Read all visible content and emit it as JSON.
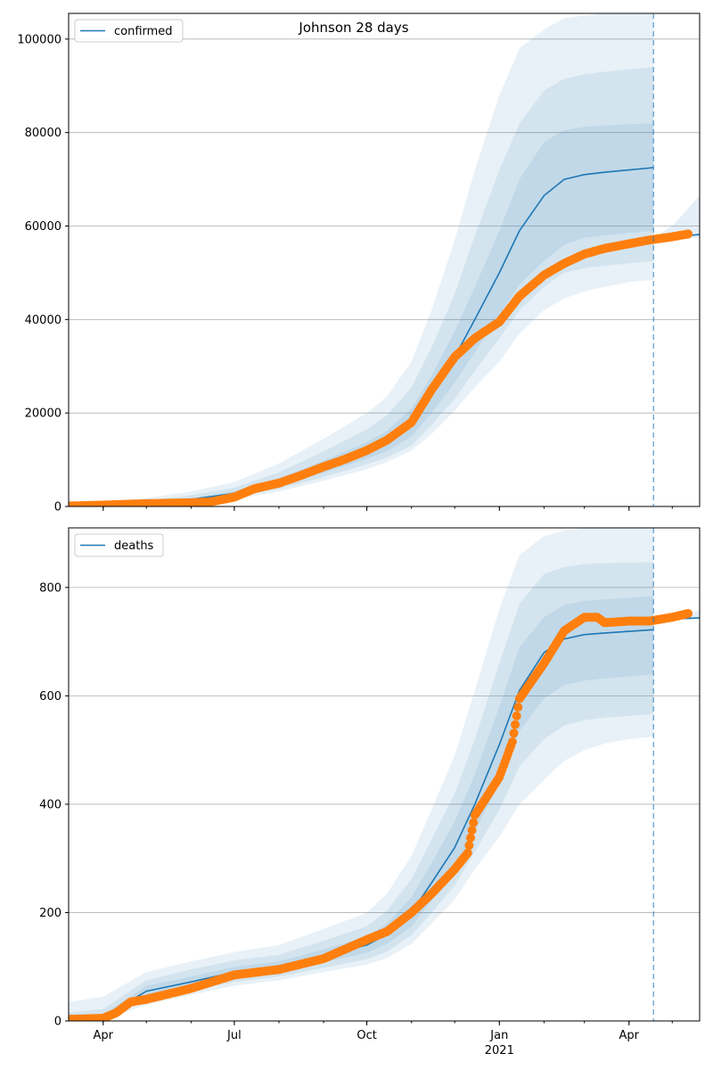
{
  "figure": {
    "title": "Johnson 28 days"
  },
  "colors": {
    "model_line": "#1f77b4",
    "band": "#1f77b4",
    "observed": "#ff7f0e",
    "grid": "#b0b0b0",
    "axis": "#000000"
  },
  "x_axis": {
    "range": [
      "2020-03-08",
      "2021-05-20"
    ],
    "tick_labels": [
      {
        "date": "2020-04-01",
        "label": "Apr"
      },
      {
        "date": "2020-07-01",
        "label": "Jul"
      },
      {
        "date": "2020-10-01",
        "label": "Oct"
      },
      {
        "date": "2021-01-01",
        "label": "Jan"
      },
      {
        "date": "2021-04-01",
        "label": "Apr"
      }
    ],
    "year_label": {
      "date": "2021-01-01",
      "label": "2021"
    },
    "forecast_start": "2021-04-18"
  },
  "chart_data": [
    {
      "type": "line",
      "legend": "confirmed",
      "legend_position": "top-left",
      "ylim": [
        0,
        105500
      ],
      "yticks": [
        0,
        20000,
        40000,
        60000,
        80000,
        100000
      ],
      "ytick_labels": [
        "0",
        "20000",
        "40000",
        "60000",
        "80000",
        "100000"
      ],
      "grid": "horizontal",
      "fit": {
        "dates": [
          "2020-03-08",
          "2020-04-01",
          "2020-05-01",
          "2020-06-01",
          "2020-07-01",
          "2020-08-01",
          "2020-09-01",
          "2020-10-01",
          "2020-10-15",
          "2020-11-01",
          "2020-11-15",
          "2020-12-01",
          "2020-12-15",
          "2021-01-01",
          "2021-01-15",
          "2021-02-01",
          "2021-02-15",
          "2021-03-01",
          "2021-03-15",
          "2021-04-01",
          "2021-04-18"
        ],
        "median": [
          200,
          400,
          800,
          1500,
          2800,
          5200,
          8500,
          12000,
          14000,
          18000,
          24000,
          32000,
          40000,
          50000,
          59000,
          66500,
          70000,
          71000,
          71500,
          72000,
          72500
        ],
        "band_50": [
          [
            150,
            250
          ],
          [
            300,
            500
          ],
          [
            650,
            950
          ],
          [
            1200,
            1800
          ],
          [
            2300,
            3300
          ],
          [
            4400,
            6000
          ],
          [
            7200,
            9800
          ],
          [
            10200,
            13800
          ],
          [
            11800,
            16200
          ],
          [
            15000,
            21000
          ],
          [
            20000,
            28000
          ],
          [
            26500,
            37500
          ],
          [
            33000,
            47000
          ],
          [
            41000,
            59000
          ],
          [
            47500,
            70000
          ],
          [
            52500,
            78000
          ],
          [
            56000,
            80500
          ],
          [
            57500,
            81200
          ],
          [
            58000,
            81500
          ],
          [
            58500,
            81800
          ],
          [
            59000,
            82000
          ]
        ],
        "band_80": [
          [
            100,
            400
          ],
          [
            200,
            700
          ],
          [
            500,
            1200
          ],
          [
            1000,
            2400
          ],
          [
            1900,
            4000
          ],
          [
            3800,
            7300
          ],
          [
            6300,
            11800
          ],
          [
            9000,
            16500
          ],
          [
            10500,
            19500
          ],
          [
            13000,
            25500
          ],
          [
            17500,
            34000
          ],
          [
            23000,
            45500
          ],
          [
            29000,
            58000
          ],
          [
            36000,
            72000
          ],
          [
            42000,
            82000
          ],
          [
            47000,
            89000
          ],
          [
            50000,
            91500
          ],
          [
            51000,
            92500
          ],
          [
            51500,
            93000
          ],
          [
            52000,
            93500
          ],
          [
            52500,
            94000
          ]
        ],
        "band_95": [
          [
            80,
            700
          ],
          [
            150,
            1100
          ],
          [
            400,
            1800
          ],
          [
            800,
            3200
          ],
          [
            1500,
            5200
          ],
          [
            3200,
            9200
          ],
          [
            5500,
            14500
          ],
          [
            8000,
            20000
          ],
          [
            9500,
            23500
          ],
          [
            12000,
            31000
          ],
          [
            15500,
            42000
          ],
          [
            20500,
            57000
          ],
          [
            25500,
            72000
          ],
          [
            31000,
            88000
          ],
          [
            37000,
            98000
          ],
          [
            42000,
            102000
          ],
          [
            44500,
            104500
          ],
          [
            46000,
            105000
          ],
          [
            47000,
            105500
          ],
          [
            48000,
            106000
          ],
          [
            48500,
            106000
          ]
        ]
      },
      "extension": {
        "dates": [
          "2021-04-18",
          "2021-05-01",
          "2021-05-20"
        ],
        "median": [
          57000,
          57600,
          58200
        ],
        "band_upper": [
          57500,
          60000,
          66500
        ],
        "band_lower": [
          56500,
          57000,
          57500
        ]
      },
      "observed": {
        "dates": [
          "2020-03-08",
          "2020-04-01",
          "2020-05-01",
          "2020-06-01",
          "2020-06-15",
          "2020-07-01",
          "2020-07-15",
          "2020-08-01",
          "2020-08-15",
          "2020-09-01",
          "2020-09-15",
          "2020-10-01",
          "2020-10-15",
          "2020-11-01",
          "2020-11-15",
          "2020-12-01",
          "2020-12-15",
          "2021-01-01",
          "2021-01-15",
          "2021-02-01",
          "2021-02-15",
          "2021-03-01",
          "2021-03-15",
          "2021-04-01",
          "2021-04-15",
          "2021-05-01",
          "2021-05-12"
        ],
        "values": [
          100,
          300,
          600,
          800,
          1000,
          2000,
          3800,
          5000,
          6500,
          8500,
          10000,
          12000,
          14200,
          18000,
          25000,
          32000,
          36000,
          39500,
          45000,
          49500,
          52000,
          54000,
          55200,
          56200,
          57000,
          57700,
          58300
        ]
      }
    },
    {
      "type": "line",
      "legend": "deaths",
      "legend_position": "top-left",
      "ylim": [
        0,
        910
      ],
      "yticks": [
        0,
        200,
        400,
        600,
        800
      ],
      "ytick_labels": [
        "0",
        "200",
        "400",
        "600",
        "800"
      ],
      "grid": "horizontal",
      "fit": {
        "dates": [
          "2020-03-08",
          "2020-04-01",
          "2020-05-01",
          "2020-06-01",
          "2020-07-01",
          "2020-08-01",
          "2020-09-01",
          "2020-10-01",
          "2020-10-15",
          "2020-11-01",
          "2020-11-15",
          "2020-12-01",
          "2020-12-15",
          "2021-01-01",
          "2021-01-15",
          "2021-02-01",
          "2021-02-15",
          "2021-03-01",
          "2021-03-15",
          "2021-04-01",
          "2021-04-18"
        ],
        "median": [
          3,
          8,
          55,
          72,
          90,
          100,
          120,
          140,
          160,
          200,
          255,
          320,
          400,
          510,
          610,
          680,
          705,
          713,
          716,
          719,
          722
        ],
        "band_50": [
          [
            2,
            5
          ],
          [
            5,
            12
          ],
          [
            45,
            65
          ],
          [
            62,
            82
          ],
          [
            80,
            100
          ],
          [
            90,
            110
          ],
          [
            108,
            132
          ],
          [
            126,
            156
          ],
          [
            142,
            180
          ],
          [
            175,
            228
          ],
          [
            222,
            292
          ],
          [
            280,
            368
          ],
          [
            350,
            455
          ],
          [
            440,
            580
          ],
          [
            535,
            690
          ],
          [
            595,
            745
          ],
          [
            620,
            768
          ],
          [
            628,
            775
          ],
          [
            632,
            778
          ],
          [
            636,
            781
          ],
          [
            640,
            784
          ]
        ],
        "band_80": [
          [
            1,
            15
          ],
          [
            3,
            22
          ],
          [
            38,
            75
          ],
          [
            55,
            95
          ],
          [
            72,
            112
          ],
          [
            82,
            122
          ],
          [
            98,
            148
          ],
          [
            114,
            175
          ],
          [
            128,
            204
          ],
          [
            158,
            262
          ],
          [
            200,
            335
          ],
          [
            250,
            420
          ],
          [
            312,
            520
          ],
          [
            390,
            660
          ],
          [
            470,
            770
          ],
          [
            520,
            825
          ],
          [
            545,
            838
          ],
          [
            555,
            843
          ],
          [
            560,
            845
          ],
          [
            563,
            846
          ],
          [
            566,
            847
          ]
        ],
        "band_95": [
          [
            0,
            35
          ],
          [
            1,
            45
          ],
          [
            30,
            90
          ],
          [
            48,
            110
          ],
          [
            65,
            127
          ],
          [
            75,
            140
          ],
          [
            90,
            170
          ],
          [
            104,
            200
          ],
          [
            116,
            235
          ],
          [
            142,
            305
          ],
          [
            180,
            390
          ],
          [
            224,
            490
          ],
          [
            280,
            610
          ],
          [
            340,
            760
          ],
          [
            400,
            860
          ],
          [
            445,
            895
          ],
          [
            480,
            905
          ],
          [
            500,
            910
          ],
          [
            512,
            912
          ],
          [
            520,
            912
          ],
          [
            525,
            912
          ]
        ]
      },
      "extension": {
        "dates": [
          "2021-04-18",
          "2021-05-01",
          "2021-05-20"
        ],
        "median": [
          740,
          742,
          744
        ],
        "band_upper": [
          742,
          746,
          758
        ],
        "band_lower": [
          738,
          740,
          741
        ]
      },
      "observed": {
        "dates": [
          "2020-03-08",
          "2020-04-01",
          "2020-04-10",
          "2020-04-20",
          "2020-05-01",
          "2020-06-01",
          "2020-07-01",
          "2020-08-01",
          "2020-09-01",
          "2020-10-01",
          "2020-10-15",
          "2020-11-01",
          "2020-11-15",
          "2020-12-01",
          "2020-12-10",
          "2020-12-15",
          "2021-01-01",
          "2021-01-10",
          "2021-01-15",
          "2021-02-01",
          "2021-02-15",
          "2021-03-01",
          "2021-03-10",
          "2021-03-15",
          "2021-04-01",
          "2021-04-15",
          "2021-05-01",
          "2021-05-12"
        ],
        "values": [
          3,
          5,
          15,
          35,
          40,
          60,
          85,
          95,
          115,
          150,
          165,
          200,
          235,
          280,
          310,
          380,
          450,
          515,
          595,
          660,
          720,
          745,
          745,
          735,
          738,
          738,
          745,
          752
        ]
      }
    }
  ]
}
